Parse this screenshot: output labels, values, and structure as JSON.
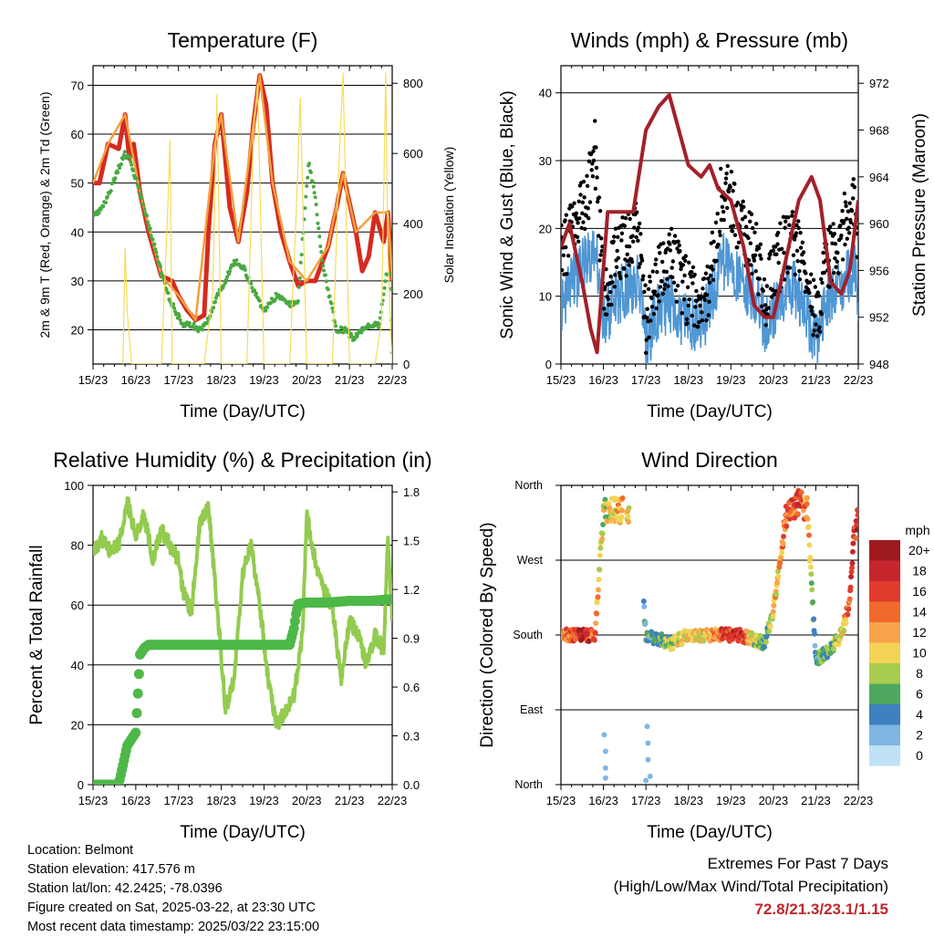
{
  "colors": {
    "temp_red": "#d62a20",
    "temp_orange": "#f2a13a",
    "dewpoint_green": "#49a942",
    "solar_yellow": "#f7dc5a",
    "wind_blue": "#4f96d4",
    "gust_black": "#000000",
    "pressure_maroon": "#a3202a",
    "rh_green": "#93cb4f",
    "precip_green": "#4db848",
    "extremes_red": "#c0262c"
  },
  "chart_data": [
    {
      "id": "temperature",
      "type": "line",
      "title": "Temperature (F)",
      "xlabel": "Time (Day/UTC)",
      "ylabel": "2m & 9m T (Red, Orange) & 2m Td (Green)",
      "ylabel_right": "Solar Insolation (Yellow)",
      "x_ticks": [
        "15/23",
        "16/23",
        "17/23",
        "18/23",
        "19/23",
        "20/23",
        "21/23",
        "22/23"
      ],
      "ylim": [
        13,
        74
      ],
      "y_ticks": [
        20,
        30,
        40,
        50,
        60,
        70
      ],
      "ylim_right": [
        0,
        850
      ],
      "y_ticks_right": [
        0,
        200,
        400,
        600,
        800
      ],
      "series": [
        {
          "name": "2m T",
          "color": "#d62a20",
          "x": [
            0,
            0.15,
            0.35,
            0.6,
            0.75,
            0.85,
            0.95,
            1.1,
            1.3,
            1.6,
            1.85,
            2.0,
            2.2,
            2.4,
            2.6,
            2.7,
            2.85,
            3.0,
            3.2,
            3.4,
            3.6,
            3.75,
            3.9,
            4.05,
            4.2,
            4.4,
            4.6,
            4.8,
            5.0,
            5.2,
            5.5,
            5.7,
            5.85,
            6.0,
            6.15,
            6.3,
            6.45,
            6.6,
            6.8,
            6.9,
            7.0
          ],
          "y": [
            50,
            50,
            58,
            57,
            64,
            55,
            58,
            48,
            40,
            31,
            30,
            27,
            24,
            22,
            23,
            40,
            58,
            64,
            45,
            38,
            48,
            62,
            72,
            66,
            50,
            40,
            34,
            29,
            30,
            30,
            37,
            45,
            52,
            46,
            40,
            32,
            35,
            44,
            38,
            44,
            30
          ]
        },
        {
          "name": "9m T",
          "color": "#f2a13a",
          "x": [
            0,
            0.35,
            0.75,
            1.1,
            1.6,
            2.0,
            2.4,
            2.85,
            3.0,
            3.4,
            3.9,
            4.2,
            4.6,
            5.0,
            5.5,
            5.85,
            6.15,
            6.6,
            6.9,
            7.0
          ],
          "y": [
            50,
            58,
            64,
            48,
            31,
            27,
            22,
            58,
            64,
            38,
            72,
            50,
            34,
            30,
            37,
            52,
            40,
            44,
            44,
            30
          ]
        },
        {
          "name": "2m Td",
          "color": "#49a942",
          "x": [
            0,
            0.3,
            0.5,
            0.75,
            0.85,
            1.0,
            1.2,
            1.5,
            1.8,
            2.1,
            2.3,
            2.5,
            2.7,
            2.9,
            3.1,
            3.3,
            3.5,
            3.7,
            4.0,
            4.3,
            4.6,
            4.8,
            4.95,
            5.05,
            5.2,
            5.35,
            5.5,
            5.7,
            5.9,
            6.1,
            6.3,
            6.5,
            6.7,
            6.85,
            6.95,
            7.0
          ],
          "y": [
            43,
            46,
            51,
            56,
            55,
            51,
            45,
            35,
            26,
            21,
            21,
            20,
            22,
            27,
            30,
            34,
            33,
            29,
            24,
            27,
            25,
            26,
            44,
            54,
            47,
            35,
            28,
            20,
            20,
            18,
            20,
            21,
            21,
            31,
            31,
            15
          ]
        },
        {
          "name": "Solar Insolation",
          "color": "#f7dc5a",
          "axis": "right",
          "x": [
            0.7,
            0.75,
            0.8,
            0.9,
            1.6,
            1.75,
            1.8,
            1.85,
            2.6,
            2.8,
            2.9,
            3.0,
            3.6,
            3.75,
            3.85,
            4.0,
            4.6,
            4.75,
            4.85,
            5.0,
            5.6,
            5.75,
            5.85,
            6.0,
            6.6,
            6.75,
            6.85,
            6.9,
            7.0
          ],
          "y": [
            0,
            330,
            150,
            0,
            0,
            450,
            640,
            0,
            0,
            200,
            770,
            0,
            0,
            650,
            800,
            0,
            0,
            420,
            760,
            0,
            0,
            560,
            830,
            0,
            0,
            120,
            830,
            300,
            0
          ]
        }
      ]
    },
    {
      "id": "winds",
      "type": "scatter",
      "title": "Winds (mph) & Pressure (mb)",
      "xlabel": "Time (Day/UTC)",
      "ylabel": "Sonic Wind & Gust (Blue, Black)",
      "ylabel_right": "Station Pressure (Maroon)",
      "x_ticks": [
        "15/23",
        "16/23",
        "17/23",
        "18/23",
        "19/23",
        "20/23",
        "21/23",
        "22/23"
      ],
      "ylim": [
        0,
        44
      ],
      "y_ticks": [
        0,
        10,
        20,
        30,
        40
      ],
      "ylim_right": [
        948,
        973.5
      ],
      "y_ticks_right": [
        948,
        952,
        956,
        960,
        964,
        968,
        972
      ],
      "series": [
        {
          "name": "Sonic Wind",
          "color": "#4f96d4",
          "x": [
            0,
            0.3,
            0.6,
            0.8,
            1.0,
            1.3,
            1.6,
            1.8,
            2.0,
            2.3,
            2.6,
            3.0,
            3.4,
            3.8,
            4.0,
            4.3,
            4.6,
            4.8,
            5.1,
            5.4,
            5.7,
            6.0,
            6.3,
            6.6,
            6.9,
            7.0
          ],
          "y": [
            9,
            12,
            15,
            18,
            6,
            10,
            11,
            12,
            3,
            8,
            9,
            6,
            7,
            15,
            14,
            12,
            10,
            6,
            9,
            12,
            9,
            3,
            10,
            12,
            14,
            10
          ]
        },
        {
          "name": "Gust",
          "color": "#000000",
          "x": [
            0,
            0.3,
            0.6,
            0.8,
            1.0,
            1.3,
            1.6,
            1.8,
            2.0,
            2.3,
            2.6,
            3.0,
            3.4,
            3.8,
            4.0,
            4.3,
            4.6,
            4.8,
            5.1,
            5.4,
            5.7,
            6.0,
            6.3,
            6.6,
            6.9,
            7.0
          ],
          "y": [
            16,
            21,
            25,
            31,
            10,
            16,
            18,
            20,
            6,
            14,
            16,
            10,
            9,
            26,
            24,
            19,
            16,
            10,
            15,
            19,
            16,
            6,
            16,
            19,
            24,
            18
          ]
        },
        {
          "name": "Station Pressure",
          "color": "#a3202a",
          "axis": "right",
          "x": [
            0,
            0.2,
            0.5,
            0.7,
            0.85,
            1.1,
            1.4,
            1.7,
            2.0,
            2.3,
            2.55,
            2.7,
            3.0,
            3.3,
            3.5,
            3.7,
            4.0,
            4.3,
            4.55,
            4.8,
            5.0,
            5.3,
            5.6,
            5.9,
            6.1,
            6.35,
            6.6,
            6.8,
            7.0
          ],
          "y": [
            958,
            960,
            955,
            951,
            949,
            961,
            961,
            961,
            968,
            970,
            971,
            969,
            965,
            964,
            965,
            963,
            962,
            958,
            953,
            952,
            952,
            957,
            962,
            964,
            962,
            955,
            954,
            956,
            962
          ]
        }
      ]
    },
    {
      "id": "humidity",
      "type": "line",
      "title": "Relative Humidity (%) & Precipitation (in)",
      "xlabel": "Time (Day/UTC)",
      "ylabel": "Percent & Total Rainfall",
      "x_ticks": [
        "15/23",
        "16/23",
        "17/23",
        "18/23",
        "19/23",
        "20/23",
        "21/23",
        "22/23"
      ],
      "ylim": [
        0,
        100
      ],
      "y_ticks": [
        0,
        20,
        40,
        60,
        80,
        100
      ],
      "ylim_right": [
        0,
        1.84
      ],
      "y_ticks_right": [
        "0.0",
        "0.3",
        "0.6",
        "0.9",
        "1.2",
        "1.5",
        "1.8"
      ],
      "series": [
        {
          "name": "Relative Humidity",
          "color": "#93cb4f",
          "x": [
            0,
            0.2,
            0.4,
            0.6,
            0.8,
            1.0,
            1.2,
            1.4,
            1.6,
            1.8,
            2.0,
            2.1,
            2.3,
            2.5,
            2.7,
            2.9,
            3.1,
            3.3,
            3.5,
            3.7,
            3.9,
            4.1,
            4.3,
            4.5,
            4.7,
            4.9,
            5.0,
            5.2,
            5.4,
            5.6,
            5.8,
            6.0,
            6.2,
            6.4,
            6.6,
            6.8,
            6.9,
            7.0
          ],
          "y": [
            77,
            82,
            78,
            80,
            95,
            83,
            90,
            75,
            85,
            80,
            75,
            65,
            58,
            88,
            93,
            60,
            25,
            35,
            70,
            80,
            60,
            35,
            20,
            25,
            30,
            50,
            90,
            75,
            65,
            60,
            35,
            55,
            50,
            40,
            50,
            45,
            82,
            55
          ]
        },
        {
          "name": "Total Precipitation",
          "color": "#4db848",
          "axis": "right",
          "x": [
            0,
            0.6,
            0.8,
            1.0,
            1.05,
            1.1,
            1.2,
            1.3,
            1.6,
            2.0,
            2.5,
            3.0,
            3.5,
            4.0,
            4.6,
            4.7,
            4.75,
            4.8,
            5.0,
            5.5,
            6.0,
            6.5,
            7.0
          ],
          "y": [
            0.0,
            0.0,
            0.24,
            0.32,
            0.56,
            0.8,
            0.84,
            0.86,
            0.86,
            0.86,
            0.86,
            0.86,
            0.86,
            0.86,
            0.86,
            0.96,
            1.05,
            1.11,
            1.12,
            1.12,
            1.13,
            1.13,
            1.14
          ]
        }
      ]
    },
    {
      "id": "wind_direction",
      "type": "scatter",
      "title": "Wind Direction",
      "xlabel": "Time (Day/UTC)",
      "ylabel": "Direction (Colored By Speed)",
      "x_ticks": [
        "15/23",
        "16/23",
        "17/23",
        "18/23",
        "19/23",
        "20/23",
        "21/23",
        "22/23"
      ],
      "y_ticks": [
        "North",
        "East",
        "South",
        "West",
        "North"
      ],
      "ylim": [
        0,
        360
      ],
      "colorbar": {
        "title": "mph",
        "labels": [
          "20+",
          "18",
          "16",
          "14",
          "12",
          "10",
          "8",
          "6",
          "4",
          "2",
          "0"
        ],
        "colors": [
          "#9e1a1f",
          "#c4262c",
          "#e03b2d",
          "#f06a2e",
          "#f7a44a",
          "#f3d356",
          "#a8cc4f",
          "#4ea860",
          "#3f80c0",
          "#7fb6e2",
          "#bfe2f6"
        ]
      },
      "series": [
        {
          "name": "Direction",
          "speed_colored": true,
          "x": [
            0,
            0.3,
            0.6,
            0.8,
            1.0,
            1.2,
            1.5,
            1.8,
            2.0,
            2.3,
            2.6,
            3.0,
            3.3,
            3.6,
            3.9,
            4.2,
            4.5,
            4.8,
            5.0,
            5.3,
            5.6,
            5.8,
            6.0,
            6.3,
            6.6,
            6.8,
            6.9,
            7.0
          ],
          "y": [
            180,
            180,
            180,
            180,
            330,
            330,
            330,
            330,
            180,
            175,
            170,
            180,
            180,
            180,
            180,
            180,
            175,
            170,
            210,
            320,
            340,
            330,
            150,
            160,
            180,
            220,
            300,
            320
          ],
          "speed": [
            12,
            16,
            18,
            14,
            8,
            10,
            12,
            6,
            4,
            6,
            8,
            10,
            10,
            12,
            16,
            18,
            10,
            6,
            10,
            14,
            16,
            12,
            4,
            6,
            10,
            14,
            18,
            16
          ]
        }
      ]
    }
  ],
  "footer": {
    "location": "Location: Belmont",
    "elevation": "Station elevation: 417.576 m",
    "latlon": "Station lat/lon: 42.2425; -78.0396",
    "created": "Figure created on Sat, 2025-03-22, at 23:30 UTC",
    "recent": "Most recent data timestamp: 2025/03/22 23:15:00",
    "extremes_title": "Extremes For Past 7 Days",
    "extremes_sub": "(High/Low/Max Wind/Total Precipitation)",
    "extremes_values": "72.8/21.3/23.1/1.15"
  }
}
